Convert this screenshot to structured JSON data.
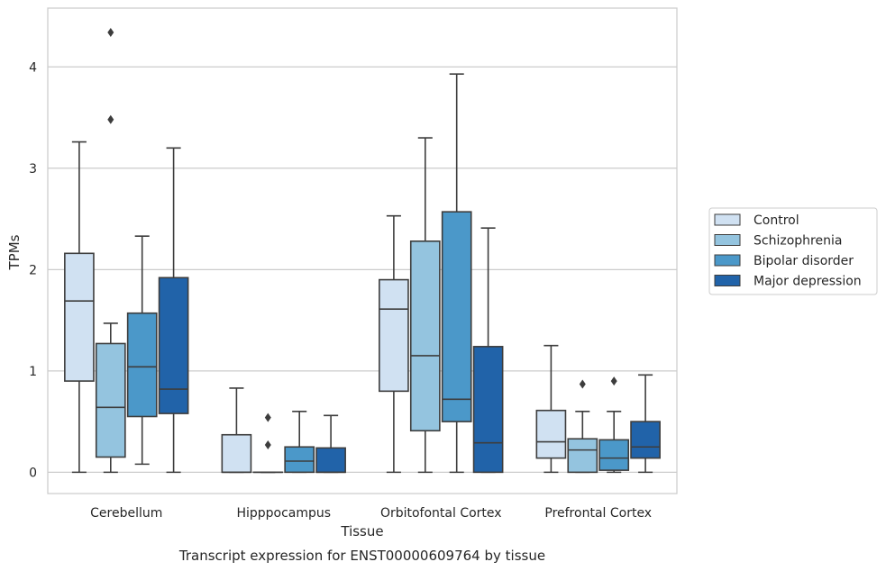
{
  "chart_data": {
    "type": "box",
    "title": "",
    "xlabel": "Tissue",
    "ylabel": "TPMs",
    "caption": "Transcript expression for ENST00000609764 by tissue",
    "ylim": [
      -0.21,
      4.58
    ],
    "yticks": [
      "0",
      "1",
      "2",
      "3",
      "4"
    ],
    "categories": [
      "Cerebellum",
      "Hipppocampus",
      "Orbitofontal Cortex",
      "Prefrontal Cortex"
    ],
    "grid": true,
    "legend_position": "right",
    "series": [
      {
        "name": "Control",
        "color": "#d0e1f2",
        "boxes": [
          {
            "whislo": 0.0,
            "q1": 0.9,
            "med": 1.69,
            "q3": 2.16,
            "whishi": 3.26,
            "fliers": []
          },
          {
            "whislo": 0.0,
            "q1": 0.0,
            "med": 0.0,
            "q3": 0.37,
            "whishi": 0.83,
            "fliers": []
          },
          {
            "whislo": 0.0,
            "q1": 0.8,
            "med": 1.61,
            "q3": 1.9,
            "whishi": 2.53,
            "fliers": []
          },
          {
            "whislo": 0.0,
            "q1": 0.14,
            "med": 0.3,
            "q3": 0.61,
            "whishi": 1.25,
            "fliers": []
          }
        ]
      },
      {
        "name": "Schizophrenia",
        "color": "#94c4df",
        "boxes": [
          {
            "whislo": 0.0,
            "q1": 0.15,
            "med": 0.64,
            "q3": 1.27,
            "whishi": 1.47,
            "fliers": [
              3.48,
              4.34
            ]
          },
          {
            "whislo": 0.0,
            "q1": 0.0,
            "med": 0.0,
            "q3": 0.0,
            "whishi": 0.0,
            "fliers": [
              0.27,
              0.54
            ]
          },
          {
            "whislo": 0.0,
            "q1": 0.41,
            "med": 1.15,
            "q3": 2.28,
            "whishi": 3.3,
            "fliers": []
          },
          {
            "whislo": 0.0,
            "q1": 0.0,
            "med": 0.22,
            "q3": 0.33,
            "whishi": 0.6,
            "fliers": [
              0.87
            ]
          }
        ]
      },
      {
        "name": "Bipolar disorder",
        "color": "#4b98c9",
        "boxes": [
          {
            "whislo": 0.08,
            "q1": 0.55,
            "med": 1.04,
            "q3": 1.57,
            "whishi": 2.33,
            "fliers": []
          },
          {
            "whislo": 0.0,
            "q1": 0.0,
            "med": 0.11,
            "q3": 0.25,
            "whishi": 0.6,
            "fliers": []
          },
          {
            "whislo": 0.0,
            "q1": 0.5,
            "med": 0.72,
            "q3": 2.57,
            "whishi": 3.93,
            "fliers": []
          },
          {
            "whislo": 0.0,
            "q1": 0.02,
            "med": 0.14,
            "q3": 0.32,
            "whishi": 0.6,
            "fliers": [
              0.9
            ]
          }
        ]
      },
      {
        "name": "Major depression",
        "color": "#2163a9",
        "boxes": [
          {
            "whislo": 0.0,
            "q1": 0.58,
            "med": 0.82,
            "q3": 1.92,
            "whishi": 3.2,
            "fliers": []
          },
          {
            "whislo": 0.0,
            "q1": 0.0,
            "med": 0.0,
            "q3": 0.24,
            "whishi": 0.56,
            "fliers": []
          },
          {
            "whislo": 0.0,
            "q1": 0.0,
            "med": 0.29,
            "q3": 1.24,
            "whishi": 2.41,
            "fliers": []
          },
          {
            "whislo": 0.0,
            "q1": 0.14,
            "med": 0.25,
            "q3": 0.5,
            "whishi": 0.96,
            "fliers": []
          }
        ]
      }
    ]
  }
}
